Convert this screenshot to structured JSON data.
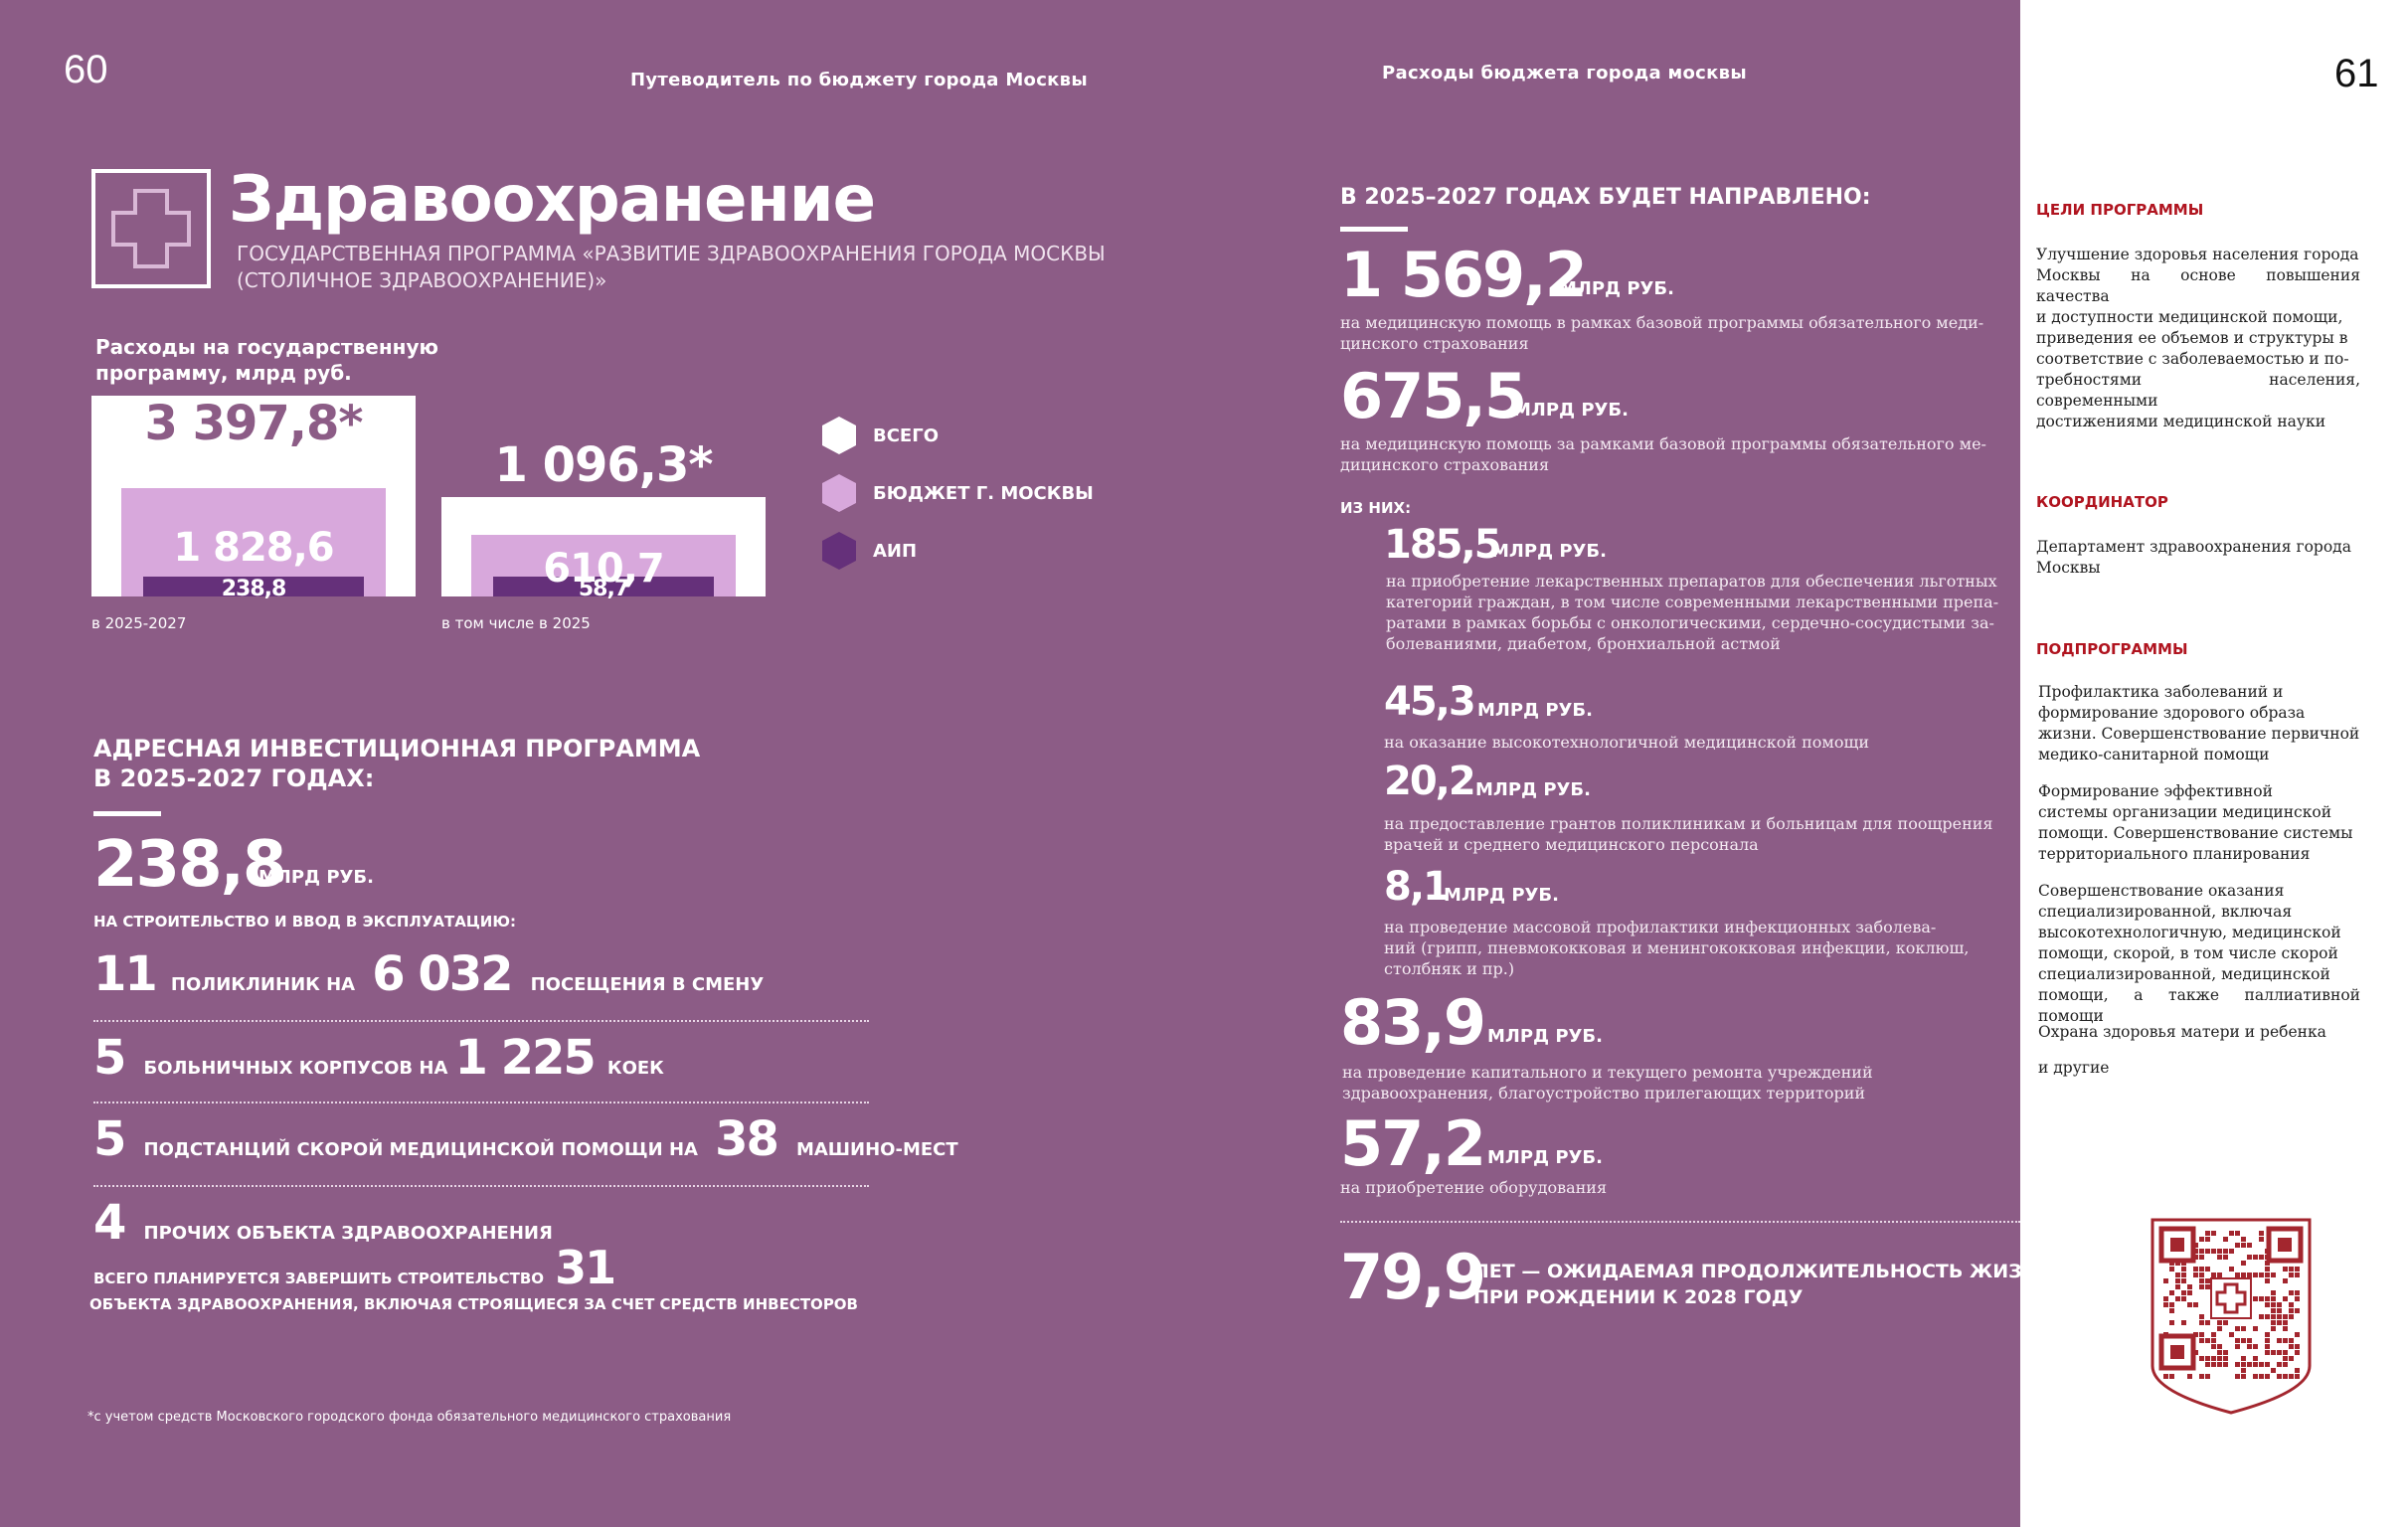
{
  "header": {
    "left_page_number": "60",
    "left_title": "Путеводитель по бюджету города Москвы",
    "right_title": "Расходы бюджета города москвы",
    "right_page_number": "61"
  },
  "section": {
    "title": "Здравоохранение",
    "subtitle_line1": "ГОСУДАРСТВЕННАЯ ПРОГРАММА «РАЗВИТИЕ ЗДРАВООХРАНЕНИЯ ГОРОДА МОСКВЫ",
    "subtitle_line2": "(СТОЛИЧНОЕ ЗДРАВООХРАНЕНИЕ)»"
  },
  "chart_data": {
    "type": "bar",
    "title": "Расходы на государственную программу, млрд руб.",
    "categories": [
      "в 2025-2027",
      "в том числе в 2025"
    ],
    "series": [
      {
        "name": "ВСЕГО",
        "values": [
          3397.8,
          1096.3
        ],
        "labels": [
          "3 397,8*",
          "1 096,3*"
        ],
        "color": "#ffffff"
      },
      {
        "name": "БЮДЖЕТ Г. МОСКВЫ",
        "values": [
          1828.6,
          610.7
        ],
        "labels": [
          "1 828,6",
          "610,7"
        ],
        "color": "#d8a8dc"
      },
      {
        "name": "АИП",
        "values": [
          238.8,
          58.7
        ],
        "labels": [
          "238,8",
          "58,7"
        ],
        "color": "#65307a"
      }
    ],
    "title_line1": "Расходы на государственную",
    "title_line2": "программу, млрд руб."
  },
  "aip": {
    "heading_line1": "АДРЕСНАЯ ИНВЕСТИЦИОННАЯ ПРОГРАММА",
    "heading_line2": "В 2025-2027 ГОДАХ:",
    "amount": "238,8",
    "amount_unit": "МЛРД РУБ.",
    "purpose": "НА СТРОИТЕЛЬСТВО И ВВОД В ЭКСПЛУАТАЦИЮ:",
    "rows": [
      {
        "n1": "11",
        "t1": "ПОЛИКЛИНИК НА",
        "n2": "6 032",
        "t2": "ПОСЕЩЕНИЯ В СМЕНУ"
      },
      {
        "n1": "5",
        "t1": "БОЛЬНИЧНЫХ КОРПУСОВ НА",
        "n2": "1 225",
        "t2": "КОЕК"
      },
      {
        "n1": "5",
        "t1": "ПОДСТАНЦИЙ СКОРОЙ МЕДИЦИНСКОЙ ПОМОЩИ НА",
        "n2": "38",
        "t2": "МАШИНО-МЕСТ"
      },
      {
        "n1": "4",
        "t1": "ПРОЧИХ ОБЪЕКТА ЗДРАВООХРАНЕНИЯ",
        "n2": "",
        "t2": ""
      }
    ],
    "plan_text1": "ВСЕГО ПЛАНИРУЕТСЯ ЗАВЕРШИТЬ СТРОИТЕЛЬСТВО",
    "plan_number": "31",
    "plan_text2": "ОБЪЕКТА ЗДРАВООХРАНЕНИЯ, ВКЛЮЧАЯ СТРОЯЩИЕСЯ ЗА СЧЕТ СРЕДСТВ ИНВЕСТОРОВ"
  },
  "footnote": "*с учетом средств Московского городского фонда обязательного медицинского страхования",
  "directed": {
    "heading": "В 2025–2027 ГОДАХ БУДЕТ НАПРАВЛЕНО:",
    "items": [
      {
        "value": "1 569,2",
        "unit": "МЛРД РУБ.",
        "line1": "на медицинскую помощь в рамках базовой программы  обязательного меди-",
        "line2": "цинского страхования"
      },
      {
        "value": "675,5",
        "unit": "МЛРД РУБ.",
        "line1": "на медицинскую помощь за рамками базовой программы  обязательного ме-",
        "line2": "дицинского страхования"
      }
    ],
    "of_them": "ИЗ НИХ:",
    "sub_items": [
      {
        "value": "185,5",
        "unit": "МЛРД РУБ.",
        "lines": [
          "на приобретение лекарственных препаратов для обеспечения льготных",
          "категорий граждан, в том числе современными лекарственными препа-",
          "ратами в рамках борьбы с онкологическими, сердечно-сосудистыми за-",
          "болеваниями, диабетом, бронхиальной астмой"
        ]
      },
      {
        "value": "45,3",
        "unit": "МЛРД РУБ.",
        "lines": [
          "на оказание высокотехнологичной медицинской помощи"
        ]
      },
      {
        "value": "20,2",
        "unit": "МЛРД РУБ.",
        "lines": [
          "на предоставление грантов поликлиникам и больницам для поощрения",
          "врачей и среднего медицинского персонала"
        ]
      },
      {
        "value": "8,1",
        "unit": "МЛРД РУБ.",
        "lines": [
          "на проведение массовой профилактики инфекционных заболева-",
          "ний (грипп, пневмококковая и менингококковая инфекции, коклюш,",
          "столбняк и пр.)"
        ]
      }
    ],
    "repair": {
      "value": "83,9",
      "unit": "МЛРД РУБ.",
      "line1": "на проведение капитального и текущего ремонта учреждений",
      "line2": "здравоохранения, благоустройство прилегающих территорий"
    },
    "equipment": {
      "value": "57,2",
      "unit": "МЛРД РУБ.",
      "line1": "на приобретение оборудования"
    },
    "life": {
      "value": "79,9",
      "line1": "ЛЕТ — ОЖИДАЕМАЯ ПРОДОЛЖИТЕЛЬНОСТЬ ЖИЗНИ",
      "line2": "ПРИ РОЖДЕНИИ К 2028 ГОДУ"
    }
  },
  "sidebar": {
    "goals_title": "ЦЕЛИ ПРОГРАММЫ",
    "goals_lines": [
      "Улучшение здоровья населения города",
      "Москвы на основе повышения качества",
      "и доступности медицинской помощи,",
      "приведения ее объемов и структуры в",
      "соответствие с заболеваемостью и по-",
      "требностями населения, современными",
      "достижениями медицинской науки"
    ],
    "coordinator_title": "КООРДИНАТОР",
    "coordinator_lines": [
      "Департамент здравоохранения города",
      "Москвы"
    ],
    "subprograms_title": "ПОДПРОГРАММЫ",
    "subprograms": [
      [
        "Профилактика заболеваний и",
        "формирование здорового образа",
        "жизни. Совершенствование первичной",
        "медико-санитарной помощи"
      ],
      [
        "Формирование эффективной",
        "системы организации медицинской",
        "помощи. Совершенствование системы",
        "территориального планирования"
      ],
      [
        "Совершенствование оказания",
        "специализированной, включая",
        "высокотехнологичную, медицинской",
        "помощи, скорой, в том числе скорой",
        "специализированной, медицинской",
        "помощи, а также паллиативной помощи"
      ],
      [
        "Охрана здоровья матери и ребенка"
      ],
      [
        "и другие"
      ]
    ],
    "qr_color": "#a3262e"
  }
}
